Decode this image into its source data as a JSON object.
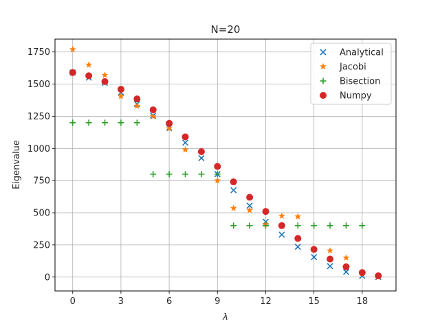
{
  "chart_data": {
    "type": "scatter",
    "title": "N=20",
    "xlabel": "λ",
    "ylabel": "Eigenvalue",
    "xlim": [
      -1.1,
      20.1
    ],
    "ylim": [
      -108,
      1850
    ],
    "xticks": [
      0,
      3,
      6,
      9,
      12,
      15,
      18
    ],
    "yticks": [
      0,
      250,
      500,
      750,
      1000,
      1250,
      1500,
      1750
    ],
    "grid": true,
    "legend_position": "top-right",
    "x": [
      0,
      1,
      2,
      3,
      4,
      5,
      6,
      7,
      8,
      9,
      10,
      11,
      12,
      13,
      14,
      15,
      16,
      17,
      18,
      19
    ],
    "series": [
      {
        "name": "Analytical",
        "marker": "x",
        "color": "#1f77b4",
        "values": [
          1590,
          1550,
          1510,
          1435,
          1345,
          1255,
          1160,
          1045,
          925,
          800,
          675,
          555,
          430,
          330,
          235,
          155,
          85,
          40,
          10,
          0
        ]
      },
      {
        "name": "Jacobi",
        "marker": "star",
        "color": "#ff7f0e",
        "values": [
          1770,
          1650,
          1570,
          1405,
          1330,
          1250,
          1155,
          990,
          975,
          750,
          535,
          520,
          410,
          475,
          470,
          215,
          205,
          150,
          30,
          0
        ]
      },
      {
        "name": "Bisection",
        "marker": "plus",
        "color": "#2ca02c",
        "x": [
          0,
          1,
          2,
          3,
          4,
          5,
          6,
          7,
          8,
          9,
          10,
          11,
          12,
          13,
          14,
          15,
          16,
          17,
          18
        ],
        "values": [
          1200,
          1200,
          1200,
          1200,
          1200,
          800,
          800,
          800,
          800,
          800,
          400,
          400,
          400,
          400,
          400,
          400,
          400,
          400,
          400
        ]
      },
      {
        "name": "Numpy",
        "marker": "circle",
        "color": "#d62728",
        "values": [
          1590,
          1565,
          1520,
          1460,
          1385,
          1300,
          1195,
          1090,
          975,
          860,
          740,
          620,
          510,
          400,
          300,
          215,
          140,
          80,
          35,
          10
        ]
      }
    ]
  }
}
